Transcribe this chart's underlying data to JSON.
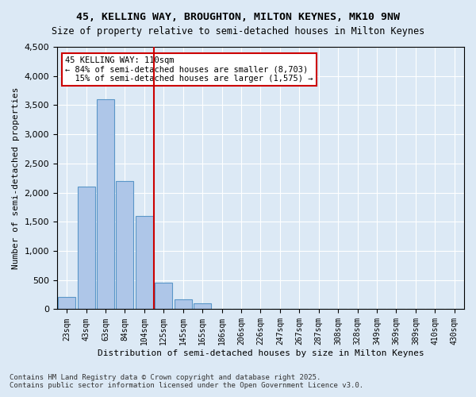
{
  "title_line1": "45, KELLING WAY, BROUGHTON, MILTON KEYNES, MK10 9NW",
  "title_line2": "Size of property relative to semi-detached houses in Milton Keynes",
  "xlabel": "Distribution of semi-detached houses by size in Milton Keynes",
  "ylabel": "Number of semi-detached properties",
  "footnote": "Contains HM Land Registry data © Crown copyright and database right 2025.\nContains public sector information licensed under the Open Government Licence v3.0.",
  "bar_labels": [
    "23sqm",
    "43sqm",
    "63sqm",
    "84sqm",
    "104sqm",
    "125sqm",
    "145sqm",
    "165sqm",
    "186sqm",
    "206sqm",
    "226sqm",
    "247sqm",
    "267sqm",
    "287sqm",
    "308sqm",
    "328sqm",
    "349sqm",
    "369sqm",
    "389sqm",
    "410sqm",
    "430sqm"
  ],
  "bar_values": [
    210,
    2100,
    3600,
    2200,
    1600,
    450,
    175,
    100,
    0,
    0,
    0,
    0,
    0,
    0,
    0,
    0,
    0,
    0,
    0,
    0,
    0
  ],
  "bar_color": "#aec6e8",
  "bar_edge_color": "#5a96c8",
  "property_size": 110,
  "property_label": "45 KELLING WAY: 110sqm",
  "pct_smaller": 84,
  "pct_smaller_count": "8,703",
  "pct_larger": 15,
  "pct_larger_count": "1,575",
  "vline_color": "#cc0000",
  "annotation_box_edge": "#cc0000",
  "ylim": [
    0,
    4500
  ],
  "yticks": [
    0,
    500,
    1000,
    1500,
    2000,
    2500,
    3000,
    3500,
    4000,
    4500
  ],
  "bg_color": "#dce9f5",
  "plot_bg_color": "#dce9f5",
  "grid_color": "#ffffff",
  "bin_width": 20
}
